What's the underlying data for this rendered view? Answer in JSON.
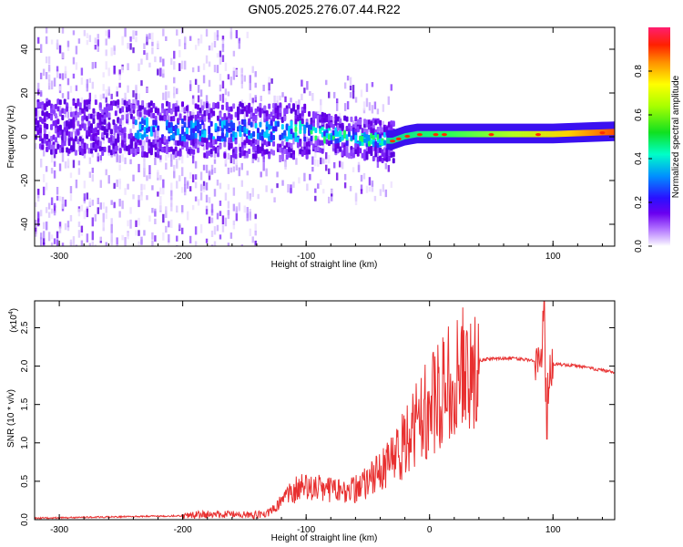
{
  "title": "GN05.2025.276.07.44.R22",
  "chart_data": [
    {
      "type": "heatmap",
      "title": "GN05.2025.276.07.44.R22",
      "xlabel": "Height of straight line (km)",
      "ylabel": "Frequency (Hz)",
      "xlim": [
        -320,
        150
      ],
      "ylim": [
        -50,
        50
      ],
      "xticks": [
        -300,
        -200,
        -100,
        0,
        100
      ],
      "xtick_labels": [
        "-300",
        "-200",
        "-100",
        "0",
        "100"
      ],
      "yticks": [
        -40,
        -20,
        0,
        20,
        40
      ],
      "ytick_labels": [
        "-40",
        "-20",
        "0",
        "20",
        "40"
      ],
      "colorbar": {
        "label": "Normalized spectral amplitude",
        "range": [
          0,
          1
        ],
        "ticks": [
          0.0,
          0.2,
          0.4,
          0.6,
          0.8
        ],
        "tick_labels": [
          "0.0",
          "0.2",
          "0.4",
          "0.6",
          "0.8"
        ],
        "colormap": [
          "#ffffff",
          "#d8b8ff",
          "#8c3cff",
          "#5a00e6",
          "#1a1aff",
          "#00b4ff",
          "#00ffaa",
          "#1ee61e",
          "#c8ff00",
          "#ffff00",
          "#ffa000",
          "#ff3000",
          "#ff1e64"
        ]
      },
      "ridge": {
        "description_note": "center frequency of the dominant band vs height",
        "x": [
          -320,
          -250,
          -200,
          -150,
          -100,
          -70,
          -50,
          -40,
          -30,
          -20,
          -10,
          0,
          20,
          50,
          100,
          150
        ],
        "center_hz": [
          5,
          4,
          3,
          3,
          2,
          0,
          -1,
          -2,
          -2,
          0,
          1,
          1,
          1,
          1,
          1,
          2
        ]
      }
    },
    {
      "type": "line",
      "xlabel": "Height of straight line (km)",
      "ylabel": "SNR (10 * v/v)",
      "y_multiplier": "(x10",
      "y_multiplier_exp": "4",
      "y_multiplier_close": ")",
      "xlim": [
        -320,
        150
      ],
      "ylim": [
        0,
        2.85
      ],
      "xticks": [
        -300,
        -200,
        -100,
        0,
        100
      ],
      "xtick_labels": [
        "-300",
        "-200",
        "-100",
        "0",
        "100"
      ],
      "yticks": [
        0.0,
        0.5,
        1.0,
        1.5,
        2.0,
        2.5
      ],
      "ytick_labels": [
        "0.0",
        "0.5",
        "1.0",
        "1.5",
        "2.0",
        "2.5"
      ],
      "color": "#e83030",
      "series": [
        {
          "name": "SNR",
          "x": [
            -320,
            -200,
            -180,
            -140,
            -130,
            -120,
            -110,
            -100,
            -90,
            -80,
            -70,
            -60,
            -50,
            -40,
            -30,
            -20,
            -10,
            0,
            10,
            20,
            30,
            40,
            50,
            60,
            70,
            80,
            88,
            92,
            95,
            98,
            100,
            120,
            150
          ],
          "values": [
            0.02,
            0.05,
            0.07,
            0.06,
            0.1,
            0.25,
            0.4,
            0.45,
            0.42,
            0.4,
            0.4,
            0.42,
            0.5,
            0.65,
            0.8,
            1.05,
            1.3,
            1.55,
            1.75,
            1.9,
            2.02,
            2.07,
            2.1,
            2.1,
            2.1,
            2.08,
            2.05,
            2.4,
            1.5,
            2.0,
            2.03,
            2.0,
            1.92
          ]
        }
      ]
    }
  ]
}
